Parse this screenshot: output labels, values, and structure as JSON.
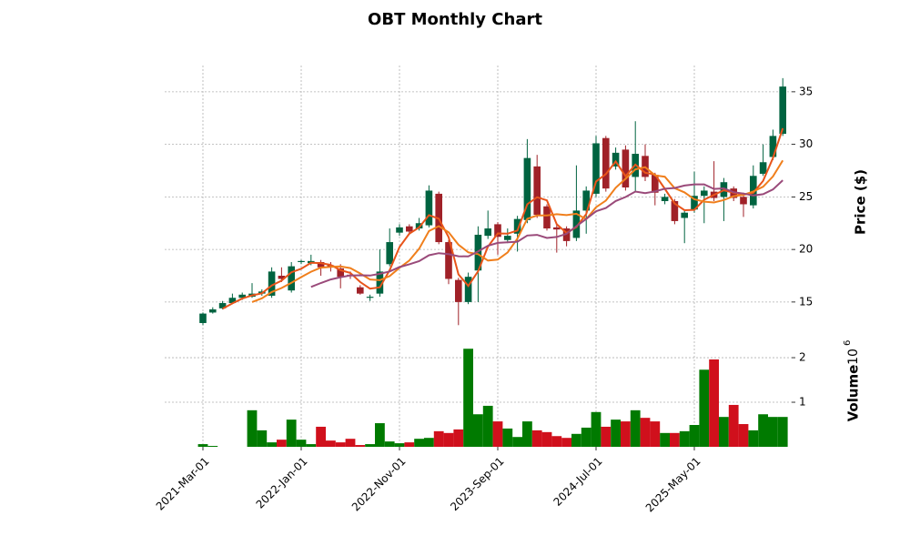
{
  "chart_data": {
    "type": "candlestick",
    "title": "OBT Monthly Chart",
    "ylabel": "Price ($)",
    "volume_label": "Volume",
    "volume_offset": {
      "base": "10",
      "exponent": "6"
    },
    "categories": [
      "2021-Mar-01",
      null,
      null,
      null,
      null,
      null,
      null,
      null,
      null,
      null,
      "2022-Jan-01",
      null,
      null,
      null,
      null,
      null,
      null,
      null,
      null,
      null,
      "2022-Nov-01",
      null,
      null,
      null,
      null,
      null,
      null,
      null,
      null,
      null,
      "2023-Sep-01",
      null,
      null,
      null,
      null,
      null,
      null,
      null,
      null,
      null,
      "2024-Jul-01",
      null,
      null,
      null,
      null,
      null,
      null,
      null,
      null,
      null,
      "2025-May-01",
      null,
      null,
      null,
      null,
      null,
      null,
      null,
      null,
      null
    ],
    "open": [
      13.0,
      14.0,
      14.4,
      14.9,
      15.4,
      15.5,
      15.8,
      15.6,
      17.5,
      16.1,
      18.8,
      18.7,
      18.8,
      18.5,
      18.2,
      17.6,
      16.4,
      15.4,
      15.8,
      18.6,
      21.6,
      22.2,
      22.0,
      22.3,
      25.3,
      20.7,
      17.1,
      15.0,
      18.0,
      21.3,
      22.4,
      20.9,
      21.5,
      22.8,
      27.9,
      24.1,
      22.1,
      22.0,
      21.1,
      23.7,
      25.3,
      30.6,
      27.9,
      29.5,
      26.9,
      28.9,
      27.1,
      24.6,
      24.6,
      23.0,
      23.8,
      25.1,
      25.5,
      25.0,
      25.8,
      25.0,
      24.2,
      27.2,
      28.8,
      31.0
    ],
    "high": [
      14.0,
      14.5,
      15.1,
      15.8,
      15.9,
      16.8,
      16.2,
      18.3,
      18.3,
      18.8,
      19.0,
      19.5,
      19.0,
      18.8,
      18.6,
      17.9,
      16.6,
      15.7,
      20.0,
      22.0,
      22.4,
      22.4,
      23.0,
      26.1,
      25.5,
      20.9,
      17.3,
      17.8,
      22.2,
      23.7,
      22.6,
      22.0,
      23.2,
      30.5,
      29.0,
      24.3,
      22.4,
      22.2,
      28.0,
      26.0,
      30.8,
      30.8,
      29.7,
      29.9,
      32.2,
      30.0,
      27.3,
      25.3,
      24.8,
      23.8,
      27.4,
      26.0,
      28.4,
      26.8,
      26.0,
      25.4,
      28.0,
      30.0,
      31.4,
      36.3
    ],
    "low": [
      12.8,
      13.9,
      14.3,
      14.8,
      15.2,
      15.4,
      15.6,
      15.4,
      16.9,
      15.9,
      18.6,
      18.5,
      17.5,
      17.9,
      16.3,
      17.2,
      15.7,
      15.1,
      15.5,
      18.4,
      21.3,
      21.4,
      21.8,
      22.1,
      20.5,
      16.7,
      12.8,
      14.8,
      15.0,
      21.0,
      19.5,
      20.6,
      19.8,
      22.5,
      23.0,
      21.8,
      19.7,
      20.3,
      20.8,
      21.5,
      25.0,
      25.5,
      27.6,
      25.6,
      25.5,
      26.5,
      24.2,
      24.3,
      22.4,
      20.6,
      23.5,
      22.5,
      24.6,
      22.7,
      24.6,
      23.1,
      23.9,
      27.0,
      28.5,
      30.8
    ],
    "close": [
      13.9,
      14.3,
      14.9,
      15.4,
      15.7,
      15.8,
      16.0,
      17.9,
      17.2,
      18.4,
      18.9,
      18.9,
      18.3,
      18.4,
      17.4,
      17.5,
      15.8,
      15.5,
      17.9,
      20.7,
      22.1,
      21.7,
      22.5,
      25.6,
      20.7,
      17.2,
      15.0,
      17.4,
      21.4,
      22.0,
      21.2,
      21.3,
      22.9,
      28.7,
      23.3,
      22.0,
      21.9,
      20.8,
      23.7,
      25.6,
      30.1,
      25.8,
      29.2,
      25.9,
      29.1,
      26.9,
      25.4,
      25.0,
      22.7,
      23.5,
      25.1,
      25.6,
      24.9,
      26.4,
      24.9,
      24.3,
      27.0,
      28.3,
      30.8,
      35.5
    ],
    "up_color": "#006340",
    "down_color": "#a02128",
    "volume": [
      0.06,
      0.02,
      0,
      0,
      0,
      0.82,
      0.37,
      0.1,
      0.16,
      0.61,
      0.16,
      0.06,
      0.45,
      0.14,
      0.1,
      0.18,
      0.04,
      0.06,
      0.53,
      0.12,
      0.08,
      0.1,
      0.18,
      0.2,
      0.35,
      0.31,
      0.39,
      2.2,
      0.73,
      0.92,
      0.57,
      0.41,
      0.22,
      0.57,
      0.37,
      0.33,
      0.24,
      0.2,
      0.29,
      0.43,
      0.78,
      0.45,
      0.61,
      0.57,
      0.82,
      0.65,
      0.57,
      0.31,
      0.31,
      0.35,
      0.49,
      1.73,
      1.96,
      0.67,
      0.94,
      0.51,
      0.37,
      0.73,
      0.67,
      0.67
    ],
    "volume_up_color": "#007a00",
    "volume_down_color": "#d0101c",
    "moving_averages": [
      {
        "color": "#e8541a",
        "values": [
          null,
          null,
          14.37,
          14.87,
          15.33,
          15.63,
          15.83,
          16.57,
          17.03,
          17.83,
          18.17,
          18.73,
          18.7,
          18.53,
          18.03,
          17.77,
          16.9,
          16.27,
          16.4,
          18.03,
          20.23,
          21.5,
          22.1,
          23.27,
          22.93,
          21.17,
          17.63,
          16.53,
          17.93,
          20.27,
          21.53,
          21.5,
          21.8,
          24.3,
          24.97,
          24.67,
          22.4,
          21.57,
          22.13,
          23.37,
          26.47,
          27.17,
          28.37,
          26.97,
          28.07,
          27.3,
          27.13,
          25.77,
          24.37,
          23.73,
          23.77,
          24.73,
          25.2,
          25.63,
          25.4,
          25.2,
          25.4,
          26.53,
          28.7,
          31.53
        ]
      },
      {
        "color": "#f07f1c",
        "values": [
          null,
          null,
          null,
          null,
          null,
          15.0,
          15.35,
          15.95,
          16.33,
          16.83,
          17.37,
          17.88,
          18.27,
          18.35,
          18.38,
          18.23,
          17.72,
          17.15,
          17.08,
          17.47,
          18.25,
          18.95,
          20.07,
          21.75,
          22.22,
          21.63,
          20.45,
          19.73,
          19.55,
          18.95,
          19.03,
          19.72,
          21.03,
          22.92,
          23.23,
          23.23,
          23.35,
          23.27,
          23.4,
          22.88,
          24.02,
          24.65,
          25.87,
          26.72,
          27.62,
          27.83,
          27.05,
          26.92,
          25.83,
          25.43,
          24.77,
          24.55,
          24.47,
          24.7,
          25.07,
          25.2,
          25.52,
          25.97,
          26.95,
          28.47
        ]
      },
      {
        "color": "#9a4a7a",
        "values": [
          null,
          null,
          null,
          null,
          null,
          null,
          null,
          null,
          null,
          null,
          null,
          16.44,
          16.81,
          17.15,
          17.36,
          17.53,
          17.54,
          17.52,
          17.68,
          17.91,
          18.32,
          18.59,
          18.89,
          19.45,
          19.65,
          19.55,
          19.35,
          19.34,
          19.81,
          20.35,
          20.63,
          20.68,
          20.74,
          21.33,
          21.39,
          21.09,
          21.19,
          21.49,
          22.22,
          22.9,
          23.63,
          23.94,
          24.61,
          24.99,
          25.51,
          25.36,
          25.53,
          25.78,
          25.85,
          26.08,
          26.19,
          26.19,
          25.76,
          25.81,
          25.45,
          25.32,
          25.14,
          25.26,
          25.71,
          26.58
        ]
      }
    ],
    "ylim": [
      11.7,
      37.5
    ],
    "yticks": [
      15,
      20,
      25,
      30,
      35
    ],
    "volume_ylim": [
      0,
      2.45
    ],
    "volume_yticks": [
      1,
      2
    ],
    "grid": true
  }
}
